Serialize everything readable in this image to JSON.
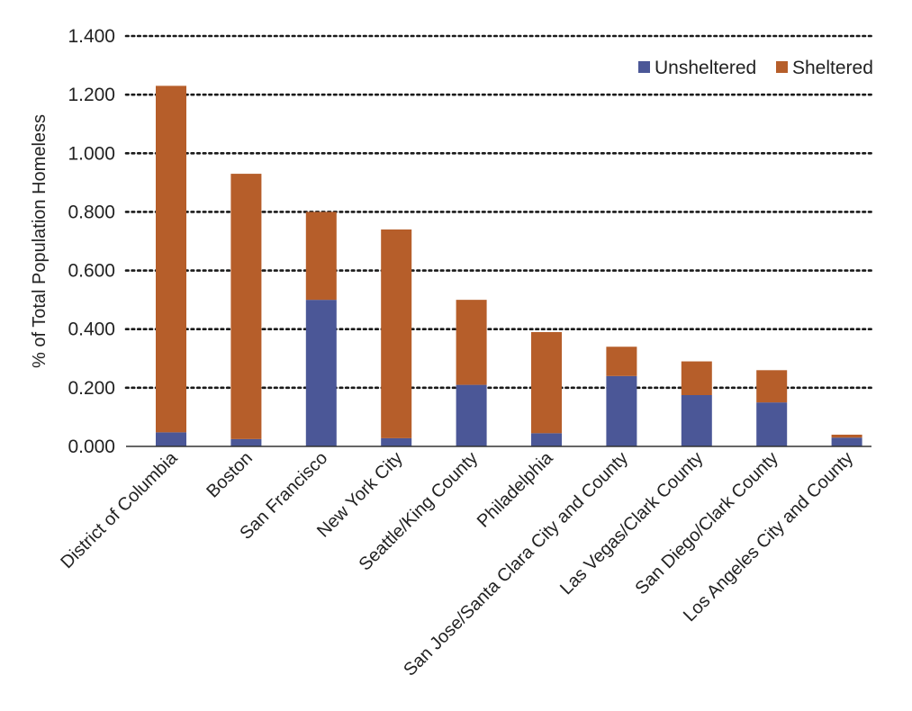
{
  "chart_data": {
    "type": "bar",
    "stacked": true,
    "title": "",
    "xlabel": "",
    "ylabel": "% of Total Population Homeless",
    "ylim": [
      0,
      1.4
    ],
    "y_ticks": [
      "0.000",
      "0.200",
      "0.400",
      "0.600",
      "0.800",
      "1.000",
      "1.200",
      "1.400"
    ],
    "grid": "horizontal dotted",
    "legend_position": "top-right",
    "categories": [
      "District of Columbia",
      "Boston",
      "San Francisco",
      "New York City",
      "Seattle/King County",
      "Philadelphia",
      "San Jose/Santa Clara City and County",
      "Las Vegas/Clark County",
      "San Diego/Clark County",
      "Los Angeles City and County"
    ],
    "series": [
      {
        "name": "Unsheltered",
        "color": "#4b5797",
        "values": [
          0.048,
          0.025,
          0.5,
          0.028,
          0.21,
          0.045,
          0.24,
          0.175,
          0.15,
          0.03
        ]
      },
      {
        "name": "Sheltered",
        "color": "#b65e2a",
        "values": [
          1.182,
          0.905,
          0.3,
          0.712,
          0.29,
          0.345,
          0.1,
          0.115,
          0.11,
          0.01
        ]
      }
    ]
  }
}
